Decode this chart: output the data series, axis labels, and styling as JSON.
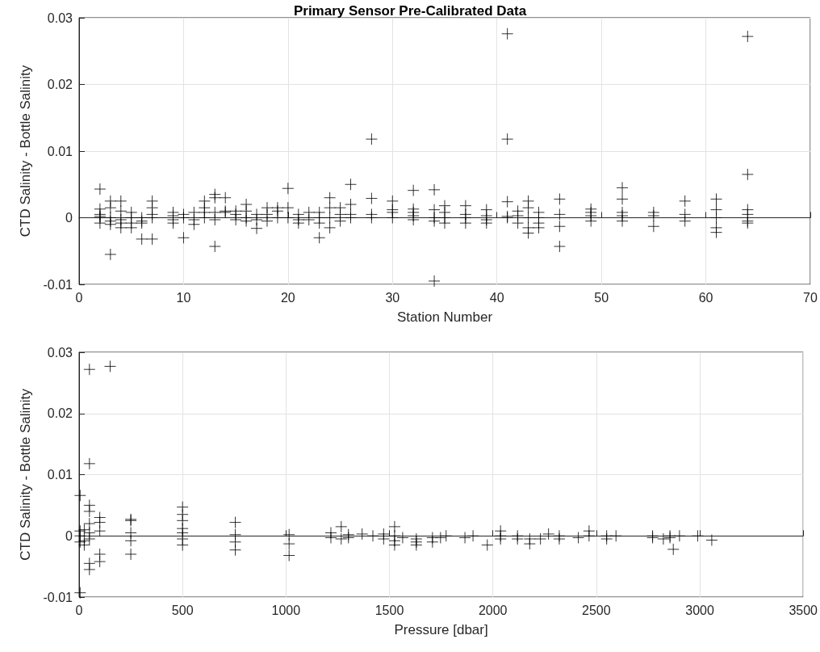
{
  "chart_data": [
    {
      "type": "scatter",
      "title": "Primary Sensor Pre-Calibrated Data",
      "xlabel": "Station Number",
      "ylabel": "CTD Salinity - Bottle Salinity",
      "xlim": [
        0,
        70
      ],
      "xticks": [
        0,
        10,
        20,
        30,
        40,
        50,
        60,
        70
      ],
      "ylim": [
        -0.01,
        0.03
      ],
      "yticks": [
        -0.01,
        0,
        0.01,
        0.02,
        0.03
      ],
      "grid": true,
      "marker": "cross",
      "series": [
        {
          "color": "#000000",
          "x": [
            2,
            2,
            2,
            2,
            2,
            2,
            3,
            3,
            3,
            3,
            3,
            3,
            4,
            4,
            4,
            4,
            4,
            5,
            5,
            5,
            5,
            6,
            6,
            6,
            6,
            7,
            7,
            7,
            7,
            7,
            9,
            9,
            9,
            9,
            10,
            10,
            10,
            11,
            11,
            11,
            12,
            12,
            12,
            12,
            13,
            13,
            13,
            13,
            13,
            14,
            14,
            14,
            15,
            15,
            15,
            16,
            16,
            16,
            16,
            17,
            17,
            17,
            18,
            18,
            18,
            19,
            19,
            19,
            20,
            20,
            20,
            21,
            21,
            21,
            22,
            22,
            23,
            23,
            23,
            23,
            24,
            24,
            24,
            24,
            25,
            25,
            25,
            26,
            26,
            26,
            26,
            28,
            28,
            28,
            28,
            30,
            30,
            30,
            30,
            32,
            32,
            32,
            32,
            32,
            34,
            34,
            34,
            34,
            34,
            35,
            35,
            35,
            35,
            37,
            37,
            37,
            37,
            39,
            39,
            39,
            39,
            41,
            41,
            41,
            41,
            41,
            42,
            42,
            42,
            43,
            43,
            43,
            43,
            43,
            44,
            44,
            44,
            44,
            46,
            46,
            46,
            46,
            49,
            49,
            49,
            49,
            52,
            52,
            52,
            52,
            52,
            55,
            55,
            55,
            58,
            58,
            58,
            61,
            61,
            61,
            61,
            61,
            64,
            64,
            64,
            64,
            64,
            64
          ],
          "values": [
            0.0043,
            0.0013,
            0.0005,
            0.0002,
            0,
            -0.0008,
            -0.0055,
            0.0025,
            0.0015,
            0,
            -0.0005,
            -0.001,
            0.0025,
            0.001,
            -0.0003,
            -0.0008,
            -0.0015,
            0.0008,
            0,
            -0.0008,
            -0.0015,
            -0.0032,
            -0.0005,
            -0.0008,
            0,
            0.0025,
            0.0015,
            0.0005,
            0,
            -0.0032,
            0.0008,
            0.0003,
            -0.0003,
            -0.0008,
            0.0005,
            0,
            -0.003,
            0.0008,
            -0.0003,
            -0.001,
            0.0025,
            0.0015,
            0.0008,
            0,
            0.0035,
            0.003,
            0.0008,
            -0.0003,
            -0.0043,
            0.003,
            0.001,
            0.0008,
            0.001,
            0.0005,
            -0.0003,
            0.002,
            0.001,
            0,
            -0.0005,
            0.0005,
            -0.0003,
            -0.0016,
            0.0015,
            0.0005,
            -0.0005,
            0.0015,
            0.001,
            0,
            0.0044,
            0.0015,
            0,
            0.0005,
            -0.0003,
            -0.0008,
            0.0008,
            -0.0003,
            0.0008,
            0,
            -0.0008,
            -0.003,
            0.003,
            0.0015,
            0,
            -0.0015,
            0.0015,
            0.0005,
            -0.0005,
            0.005,
            0.002,
            0.0005,
            0,
            0.0118,
            0.0029,
            0.0005,
            0,
            0.0025,
            0.0012,
            0.0008,
            0,
            0.0041,
            0.0013,
            0.0008,
            0.0003,
            -0.0003,
            0.0042,
            0.0012,
            0,
            -0.0005,
            -0.0095,
            0.0018,
            0.0008,
            0,
            -0.0008,
            0.0018,
            0.0005,
            0,
            -0.0008,
            0.0012,
            0.0003,
            -0.0003,
            -0.0008,
            0.0276,
            0.0118,
            0.0024,
            0.0002,
            0,
            0.001,
            0.0003,
            -0.0008,
            0.0025,
            0.0015,
            0,
            -0.0015,
            -0.0023,
            0.0008,
            0,
            -0.0008,
            -0.0015,
            0.0028,
            0.0005,
            -0.0013,
            -0.0043,
            0.0013,
            0.0008,
            0.0003,
            -0.0005,
            0.0045,
            0.0028,
            0.0008,
            0.0003,
            -0.0005,
            0.0008,
            0.0003,
            -0.0013,
            0.0025,
            0.0005,
            -0.0005,
            0.0028,
            0.0012,
            0,
            -0.0015,
            -0.0022,
            0.0272,
            0.0065,
            0.0012,
            0.0005,
            -0.0005,
            -0.0008
          ]
        }
      ]
    },
    {
      "type": "scatter",
      "xlabel": "Pressure [dbar]",
      "ylabel": "CTD Salinity - Bottle Salinity",
      "xlim": [
        0,
        3500
      ],
      "xticks": [
        0,
        500,
        1000,
        1500,
        2000,
        2500,
        3000,
        3500
      ],
      "ylim": [
        -0.01,
        0.03
      ],
      "yticks": [
        -0.01,
        0,
        0.01,
        0.02,
        0.03
      ],
      "grid": true,
      "marker": "cross",
      "series": [
        {
          "color": "#000000",
          "x": [
            5,
            5,
            5,
            5,
            5,
            25,
            25,
            25,
            50,
            50,
            50,
            50,
            50,
            50,
            50,
            50,
            50,
            100,
            100,
            100,
            100,
            100,
            150,
            250,
            250,
            250,
            250,
            250,
            500,
            500,
            500,
            500,
            500,
            500,
            500,
            755,
            755,
            755,
            755,
            1015,
            1015,
            1015,
            1217,
            1217,
            1267,
            1267,
            1302,
            1302,
            1368,
            1420,
            1472,
            1472,
            1525,
            1525,
            1525,
            1525,
            1564,
            1630,
            1630,
            1630,
            1708,
            1708,
            1747,
            1774,
            1865,
            1904,
            1973,
            2037,
            2037,
            2037,
            2119,
            2119,
            2178,
            2178,
            2230,
            2269,
            2321,
            2321,
            2413,
            2465,
            2465,
            2550,
            2550,
            2595,
            2772,
            2772,
            2824,
            2856,
            2856,
            2872,
            2902,
            2990,
            3058
          ],
          "values": [
            0.0066,
            0.0008,
            0,
            -0.001,
            -0.0093,
            0.001,
            -0.0008,
            -0.0015,
            0.0272,
            0.0118,
            0.005,
            0.004,
            0.002,
            0.0005,
            -0.0005,
            -0.0045,
            -0.0055,
            0.003,
            0.0022,
            0.0008,
            -0.003,
            -0.0042,
            0.0277,
            0.0027,
            0.0025,
            0.0005,
            -0.0008,
            -0.003,
            0.0047,
            0.0035,
            0.0025,
            0.0012,
            0.0005,
            -0.0005,
            -0.0015,
            0.0022,
            0.0002,
            -0.001,
            -0.0023,
            0.0002,
            -0.0013,
            -0.0032,
            0.0005,
            -0.0003,
            0.0015,
            -0.0005,
            0.0002,
            -0.0003,
            0.0003,
            0,
            0.0003,
            -0.0005,
            0.0015,
            0,
            -0.0008,
            -0.0015,
            -0.0003,
            -0.0005,
            -0.001,
            -0.0015,
            -0.0003,
            -0.001,
            -0.0003,
            0,
            -0.0003,
            0,
            -0.0015,
            0.0008,
            0,
            -0.0005,
            0,
            -0.0005,
            -0.0005,
            -0.0013,
            -0.0005,
            0.0003,
            0,
            -0.0005,
            -0.0003,
            0.0008,
            0,
            0,
            -0.0005,
            0,
            0,
            -0.0003,
            -0.0005,
            0,
            -0.0003,
            -0.0022,
            0,
            0,
            -0.0007
          ]
        }
      ]
    }
  ]
}
